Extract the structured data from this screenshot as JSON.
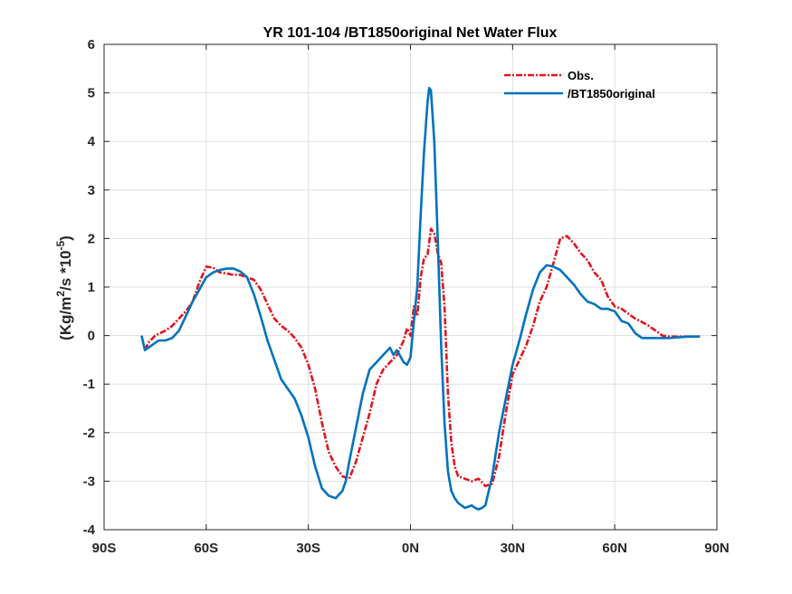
{
  "chart_data": {
    "type": "line",
    "title": "YR 101-104 /BT1850original  Net Water Flux",
    "xlabel": "",
    "ylabel_parts": {
      "open": "(Kg/m",
      "sup1": "2",
      "mid": "/s *10",
      "sup2": "-5",
      "close": ")"
    },
    "xlim": [
      -90,
      90
    ],
    "ylim": [
      -4,
      6
    ],
    "xticks": [
      -90,
      -60,
      -30,
      0,
      30,
      60,
      90
    ],
    "xtick_labels": [
      "90S",
      "60S",
      "30S",
      "0N",
      "30N",
      "60N",
      "90N"
    ],
    "yticks": [
      -4,
      -3,
      -2,
      -1,
      0,
      1,
      2,
      3,
      4,
      5,
      6
    ],
    "ytick_labels": [
      "-4",
      "-3",
      "-2",
      "-1",
      "0",
      "1",
      "2",
      "3",
      "4",
      "5",
      "6"
    ],
    "grid": true,
    "legend_position": "top-right",
    "series": [
      {
        "name": "Obs.",
        "color": "#e0141e",
        "style": "dashed",
        "x": [
          -78,
          -77,
          -75,
          -72,
          -70,
          -68,
          -66,
          -64,
          -62,
          -60,
          -58,
          -56,
          -54,
          -52,
          -50,
          -48,
          -46,
          -44,
          -42,
          -40,
          -38,
          -36,
          -34,
          -32,
          -30,
          -28,
          -26,
          -24,
          -22,
          -20,
          -18,
          -16,
          -14,
          -12,
          -10,
          -8,
          -6,
          -4,
          -2,
          -1,
          0,
          1,
          2,
          3,
          4,
          5,
          6,
          7,
          8,
          9,
          10,
          11,
          12,
          13,
          14,
          16,
          18,
          20,
          22,
          24,
          26,
          28,
          30,
          32,
          34,
          36,
          38,
          40,
          42,
          44,
          46,
          48,
          50,
          52,
          54,
          56,
          58,
          60,
          62,
          64,
          66,
          68,
          70,
          72,
          74,
          76,
          78,
          80,
          82,
          84,
          85
        ],
        "y": [
          -0.3,
          -0.15,
          0.0,
          0.1,
          0.2,
          0.35,
          0.5,
          0.7,
          1.1,
          1.42,
          1.4,
          1.3,
          1.28,
          1.25,
          1.25,
          1.2,
          1.15,
          0.95,
          0.65,
          0.35,
          0.2,
          0.1,
          -0.05,
          -0.25,
          -0.6,
          -1.1,
          -1.8,
          -2.4,
          -2.7,
          -2.9,
          -2.95,
          -2.6,
          -2.1,
          -1.6,
          -1.0,
          -0.7,
          -0.55,
          -0.4,
          -0.1,
          0.15,
          0.0,
          0.6,
          0.4,
          1.2,
          1.6,
          1.65,
          2.2,
          2.1,
          1.7,
          1.5,
          0.6,
          -1.2,
          -2.2,
          -2.7,
          -2.9,
          -2.95,
          -3.0,
          -2.95,
          -3.1,
          -3.05,
          -2.5,
          -1.6,
          -0.8,
          -0.5,
          -0.2,
          0.2,
          0.7,
          1.0,
          1.5,
          2.0,
          2.05,
          1.9,
          1.7,
          1.55,
          1.3,
          1.15,
          0.8,
          0.6,
          0.55,
          0.45,
          0.35,
          0.28,
          0.2,
          0.1,
          0.0,
          -0.02,
          -0.02,
          -0.02,
          -0.02,
          -0.02,
          -0.02
        ]
      },
      {
        "name": "/BT1850original",
        "color": "#0072bd",
        "style": "solid",
        "x": [
          -79,
          -78,
          -76,
          -74,
          -72,
          -70,
          -68,
          -66,
          -64,
          -62,
          -60,
          -58,
          -56,
          -54,
          -52,
          -50,
          -48,
          -46,
          -44,
          -42,
          -40,
          -38,
          -36,
          -34,
          -32,
          -30,
          -28,
          -26,
          -24,
          -22,
          -20,
          -19,
          -18,
          -16,
          -14,
          -12,
          -10,
          -8,
          -6,
          -5,
          -4,
          -2,
          -1,
          0,
          1,
          2,
          3,
          4,
          5,
          5.5,
          6,
          7,
          8,
          9,
          10,
          11,
          12,
          13,
          14,
          16,
          18,
          19,
          20,
          21,
          22,
          24,
          26,
          28,
          30,
          32,
          34,
          36,
          38,
          40,
          42,
          44,
          46,
          48,
          50,
          52,
          54,
          56,
          58,
          60,
          62,
          64,
          66,
          68,
          70,
          72,
          74,
          76,
          78,
          80,
          82,
          84,
          85
        ],
        "y": [
          0.0,
          -0.3,
          -0.2,
          -0.1,
          -0.1,
          -0.05,
          0.1,
          0.4,
          0.7,
          0.95,
          1.2,
          1.3,
          1.35,
          1.38,
          1.38,
          1.32,
          1.2,
          0.85,
          0.4,
          -0.1,
          -0.5,
          -0.9,
          -1.1,
          -1.3,
          -1.65,
          -2.1,
          -2.7,
          -3.15,
          -3.3,
          -3.35,
          -3.2,
          -3.0,
          -2.6,
          -1.9,
          -1.2,
          -0.7,
          -0.55,
          -0.4,
          -0.25,
          -0.4,
          -0.3,
          -0.55,
          -0.6,
          -0.45,
          0.3,
          1.0,
          2.5,
          3.8,
          4.8,
          5.1,
          5.05,
          4.0,
          2.0,
          -0.2,
          -1.8,
          -2.8,
          -3.2,
          -3.35,
          -3.45,
          -3.55,
          -3.5,
          -3.55,
          -3.58,
          -3.55,
          -3.5,
          -2.9,
          -2.0,
          -1.3,
          -0.6,
          -0.1,
          0.45,
          0.95,
          1.3,
          1.45,
          1.42,
          1.35,
          1.2,
          1.05,
          0.85,
          0.7,
          0.65,
          0.55,
          0.55,
          0.5,
          0.3,
          0.25,
          0.05,
          -0.05,
          -0.05,
          -0.05,
          -0.05,
          -0.05,
          -0.04,
          -0.03,
          -0.02,
          -0.02,
          -0.02
        ]
      }
    ]
  }
}
